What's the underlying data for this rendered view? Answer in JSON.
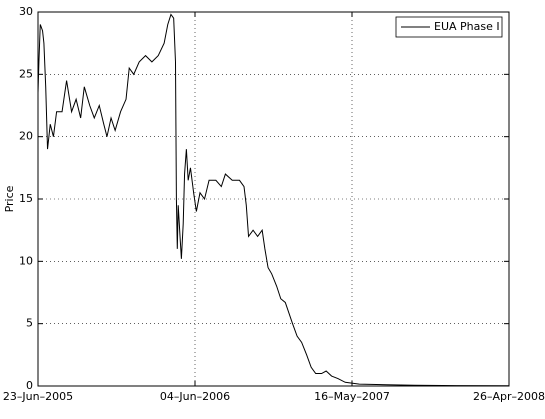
{
  "chart_data": {
    "type": "line",
    "ylabel": "Price",
    "legend": "northeast",
    "grid": true,
    "xlim": [
      "2005-06-23",
      "2008-04-26"
    ],
    "xticks": [
      {
        "value": "2005-06-23",
        "label": "23–Jun–2005"
      },
      {
        "value": "2006-06-04",
        "label": "04–Jun–2006"
      },
      {
        "value": "2007-05-16",
        "label": "16–May–2007"
      },
      {
        "value": "2008-04-26",
        "label": "26–Apr–2008"
      }
    ],
    "ylim": [
      0,
      30
    ],
    "yticks": [
      0,
      5,
      10,
      15,
      20,
      25,
      30
    ],
    "x": [
      "2005-06-23",
      "2005-06-25",
      "2005-06-28",
      "2005-07-03",
      "2005-07-06",
      "2005-07-10",
      "2005-07-14",
      "2005-07-20",
      "2005-07-27",
      "2005-08-03",
      "2005-08-15",
      "2005-08-25",
      "2005-09-05",
      "2005-09-15",
      "2005-09-25",
      "2005-10-03",
      "2005-10-15",
      "2005-10-25",
      "2005-11-05",
      "2005-11-15",
      "2005-11-22",
      "2005-12-01",
      "2005-12-10",
      "2005-12-22",
      "2006-01-03",
      "2006-01-10",
      "2006-01-20",
      "2006-02-01",
      "2006-02-15",
      "2006-03-01",
      "2006-03-15",
      "2006-03-28",
      "2006-04-05",
      "2006-04-12",
      "2006-04-18",
      "2006-04-22",
      "2006-04-24",
      "2006-04-26",
      "2006-04-28",
      "2006-05-02",
      "2006-05-05",
      "2006-05-09",
      "2006-05-12",
      "2006-05-16",
      "2006-05-20",
      "2006-05-25",
      "2006-06-01",
      "2006-06-07",
      "2006-06-15",
      "2006-06-25",
      "2006-07-05",
      "2006-07-20",
      "2006-08-01",
      "2006-08-10",
      "2006-08-25",
      "2006-09-10",
      "2006-09-20",
      "2006-09-25",
      "2006-09-30",
      "2006-10-10",
      "2006-10-20",
      "2006-10-30",
      "2006-11-05",
      "2006-11-12",
      "2006-11-20",
      "2006-12-01",
      "2006-12-10",
      "2006-12-20",
      "2007-01-05",
      "2007-01-15",
      "2007-01-25",
      "2007-02-05",
      "2007-02-15",
      "2007-02-25",
      "2007-03-10",
      "2007-03-20",
      "2007-04-01",
      "2007-04-15",
      "2007-05-01",
      "2007-06-01",
      "2007-08-01",
      "2007-10-01",
      "2008-01-01",
      "2008-04-25"
    ],
    "series": [
      {
        "name": "EUA Phase I",
        "color": "#000000",
        "values": [
          23.5,
          26,
          29,
          28.5,
          27.5,
          24,
          19,
          21,
          20,
          22,
          22,
          24.5,
          22,
          23,
          21.5,
          24,
          22.5,
          21.5,
          22.5,
          21,
          20,
          21.5,
          20.5,
          22,
          23,
          25.5,
          25,
          26,
          26.5,
          26,
          26.5,
          27.5,
          29,
          29.8,
          29.5,
          26,
          15,
          11,
          14.5,
          12,
          10.2,
          13,
          17,
          19,
          16.5,
          17.5,
          15.5,
          14,
          15.5,
          15,
          16.5,
          16.5,
          16,
          17,
          16.5,
          16.5,
          16,
          14.5,
          12,
          12.5,
          12,
          12.5,
          11,
          9.5,
          9,
          8,
          7,
          6.7,
          5,
          4,
          3.5,
          2.5,
          1.5,
          1.0,
          1.0,
          1.2,
          0.8,
          0.6,
          0.3,
          0.15,
          0.1,
          0.06,
          0.03,
          0.02
        ]
      }
    ]
  }
}
